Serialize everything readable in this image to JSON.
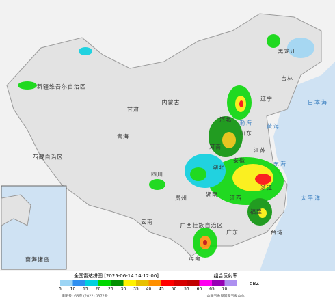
{
  "header": {
    "title": "全国雷达拼图 [2025-06-14 14:12:00]",
    "product": "组合反射率"
  },
  "legend": {
    "unit": "dBZ",
    "ticks": [
      5,
      10,
      15,
      20,
      25,
      30,
      35,
      40,
      45,
      50,
      55,
      60,
      65,
      70
    ],
    "colors": [
      "#9cd5f5",
      "#2e8ff0",
      "#00d0e0",
      "#00d800",
      "#019000",
      "#fff200",
      "#e7c000",
      "#ff9000",
      "#ff0000",
      "#d60000",
      "#c00000",
      "#ff00f0",
      "#9600b4",
      "#ad90f0"
    ]
  },
  "map": {
    "labels": [
      "新疆维吾尔自治区",
      "西藏自治区",
      "青海",
      "甘肃",
      "内蒙古",
      "四川",
      "云南",
      "贵州",
      "广西壮族自治区",
      "广东",
      "湖南",
      "湖北",
      "河南",
      "山东",
      "河北",
      "辽宁",
      "吉林",
      "黑龙江",
      "安徽",
      "江苏",
      "浙江",
      "福建",
      "江西",
      "台湾",
      "海南"
    ],
    "seas": [
      "黄海",
      "东海",
      "太平洋",
      "日本海",
      "渤海"
    ],
    "inset": "南海诸岛"
  },
  "footer": {
    "approval": "审图号: GS京 (2022) 0372号",
    "source": "中国气象局国家气象中心"
  }
}
